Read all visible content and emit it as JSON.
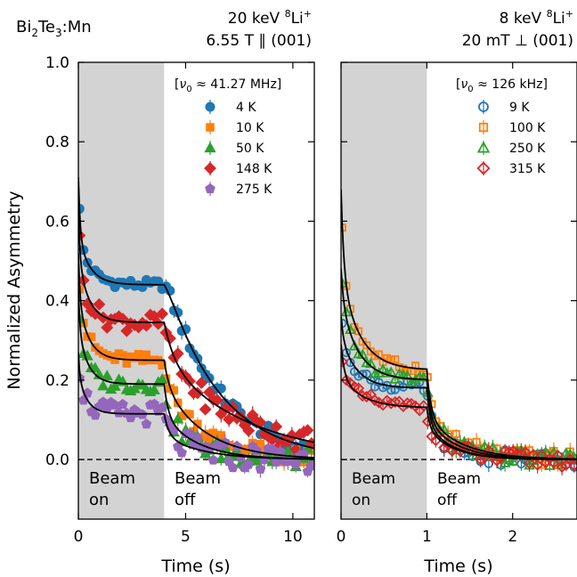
{
  "figure": {
    "sample_label": "Bi2Te3:Mn",
    "ylabel": "Normalized Asymmetry",
    "xlabel": "Time (s)"
  },
  "chart_data": [
    {
      "type": "scatter",
      "condition_line1": "20 keV 8Li+",
      "condition_line2": "6.55 T ∥ (001)",
      "legend_title": "[ν0 ≈ 41.27 MHz]",
      "xlim": [
        0,
        11
      ],
      "ylim": [
        -0.15,
        1.0
      ],
      "xticks": [
        0,
        5,
        10
      ],
      "yticks": [
        0.0,
        0.2,
        0.4,
        0.6,
        0.8,
        1.0
      ],
      "beam_on_interval": [
        0,
        4
      ],
      "beam_on_label": [
        "Beam",
        "on"
      ],
      "beam_off_label": [
        "Beam",
        "off"
      ],
      "reference_line_y": 0,
      "legend_position": "top-right",
      "series": [
        {
          "name": "4 K",
          "marker": "circle",
          "filled": true,
          "color": "#1f77b4",
          "y0": 0.71,
          "A": 0.12,
          "B": 0.44,
          "tau_on": 0.55,
          "scale_off": 0.47,
          "tau_off": 2.5
        },
        {
          "name": "10 K",
          "marker": "square",
          "filled": true,
          "color": "#ff7f0e",
          "y0": 0.52,
          "A": 0.15,
          "B": 0.25,
          "tau_on": 0.5,
          "scale_off": 0.19,
          "tau_off": 1.9
        },
        {
          "name": "50 K",
          "marker": "triangle",
          "filled": true,
          "color": "#2ca02c",
          "y0": 0.43,
          "A": 0.14,
          "B": 0.19,
          "tau_on": 0.45,
          "scale_off": 0.11,
          "tau_off": 1.6
        },
        {
          "name": "148 K",
          "marker": "diamond",
          "filled": true,
          "color": "#d62728",
          "y0": 0.63,
          "A": 0.16,
          "B": 0.345,
          "tau_on": 0.5,
          "scale_off": 0.25,
          "tau_off": 4.0
        },
        {
          "name": "275 K",
          "marker": "pentagon",
          "filled": true,
          "color": "#9467bd",
          "y0": 0.27,
          "A": 0.1,
          "B": 0.115,
          "tau_on": 0.4,
          "scale_off": 0.06,
          "tau_off": 1.8
        }
      ]
    },
    {
      "type": "scatter",
      "condition_line1": "8 keV 8Li+",
      "condition_line2": "20 mT ⊥ (001)",
      "legend_title": "[ν0 ≈ 126 kHz]",
      "xlim": [
        0,
        2.75
      ],
      "ylim": [
        -0.15,
        1.0
      ],
      "xticks": [
        0,
        1,
        2
      ],
      "yticks": [
        0.0,
        0.2,
        0.4,
        0.6,
        0.8,
        1.0
      ],
      "beam_on_interval": [
        0,
        1
      ],
      "beam_on_label": [
        "Beam",
        "on"
      ],
      "beam_off_label": [
        "Beam",
        "off"
      ],
      "reference_line_y": 0,
      "legend_position": "top-right",
      "series": [
        {
          "name": "9 K",
          "marker": "circle",
          "filled": false,
          "color": "#1f77b4",
          "y0": 0.36,
          "A": 0.13,
          "B": 0.18,
          "tau_on": 0.18,
          "scale_off": 0.09,
          "tau_off": 0.3
        },
        {
          "name": "100 K",
          "marker": "square",
          "filled": false,
          "color": "#ff7f0e",
          "y0": 0.68,
          "A": 0.24,
          "B": 0.225,
          "tau_on": 0.22,
          "scale_off": 0.11,
          "tau_off": 0.4
        },
        {
          "name": "250 K",
          "marker": "triangle",
          "filled": false,
          "color": "#2ca02c",
          "y0": 0.48,
          "A": 0.2,
          "B": 0.2,
          "tau_on": 0.2,
          "scale_off": 0.1,
          "tau_off": 0.35
        },
        {
          "name": "315 K",
          "marker": "diamond",
          "filled": false,
          "color": "#d62728",
          "y0": 0.29,
          "A": 0.08,
          "B": 0.13,
          "tau_on": 0.25,
          "scale_off": 0.08,
          "tau_off": 0.3
        }
      ]
    }
  ]
}
